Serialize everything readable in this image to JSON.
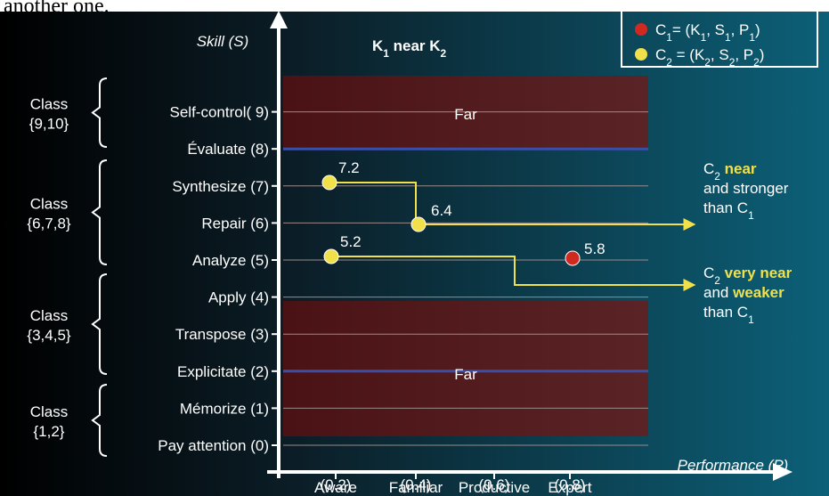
{
  "top_text": "another one.",
  "title": [
    {
      "text": "K"
    },
    {
      "text": "1",
      "sub": true
    },
    {
      "text": " near K"
    },
    {
      "text": "2",
      "sub": true
    }
  ],
  "y_axis_label": "Skill (S)",
  "x_axis_label": "Performance (P)",
  "skills": [
    "Pay attention (0)",
    "Mémorize (1)",
    "Explicitate (2)",
    "Transpose (3)",
    "Apply (4)",
    "Analyze (5)",
    "Repair (6)",
    "Synthesize  (7)",
    "Évaluate (8)",
    "Self-control( 9)"
  ],
  "performance": [
    {
      "tick": "(0.2)",
      "name": "Aware"
    },
    {
      "tick": "(0.4)",
      "name": "Familiar"
    },
    {
      "tick": "(0.6)",
      "name": "Productive"
    },
    {
      "tick": "(0.8)",
      "name": "Expert"
    }
  ],
  "classes": [
    {
      "label": "Class",
      "set": "{9,10}"
    },
    {
      "label": "Class",
      "set": "{6,7,8}"
    },
    {
      "label": "Class",
      "set": "{3,4,5}"
    },
    {
      "label": "Class",
      "set": "{1,2}"
    }
  ],
  "far_zones": [
    "Far",
    "Far"
  ],
  "points": [
    "7.2",
    "6.4",
    "5.2",
    "5.8"
  ],
  "legend": [
    [
      {
        "text": "C"
      },
      {
        "text": "1",
        "sub": true
      },
      {
        "text": "= (K"
      },
      {
        "text": "1",
        "sub": true
      },
      {
        "text": ", S"
      },
      {
        "text": "1",
        "sub": true
      },
      {
        "text": ", P"
      },
      {
        "text": "1",
        "sub": true
      },
      {
        "text": ")"
      }
    ],
    [
      {
        "text": "C"
      },
      {
        "text": "2",
        "sub": true
      },
      {
        "text": " = (K"
      },
      {
        "text": "2",
        "sub": true
      },
      {
        "text": ", S"
      },
      {
        "text": "2",
        "sub": true
      },
      {
        "text": ", P"
      },
      {
        "text": "2",
        "sub": true
      },
      {
        "text": ")"
      }
    ]
  ],
  "annotations": [
    [
      [
        {
          "text": "C"
        },
        {
          "text": "2",
          "sub": true
        },
        {
          "text": " near",
          "highlight": true
        }
      ],
      [
        {
          "text": "and stronger"
        }
      ],
      [
        {
          "text": "than C"
        },
        {
          "text": "1",
          "sub": true
        }
      ]
    ],
    [
      [
        {
          "text": "C"
        },
        {
          "text": "2",
          "sub": true
        },
        {
          "text": " very near",
          "highlight": true
        }
      ],
      [
        {
          "text": "and "
        },
        {
          "text": "weaker",
          "highlight": true
        }
      ],
      [
        {
          "text": "than C"
        },
        {
          "text": "1",
          "sub": true
        }
      ]
    ]
  ]
}
